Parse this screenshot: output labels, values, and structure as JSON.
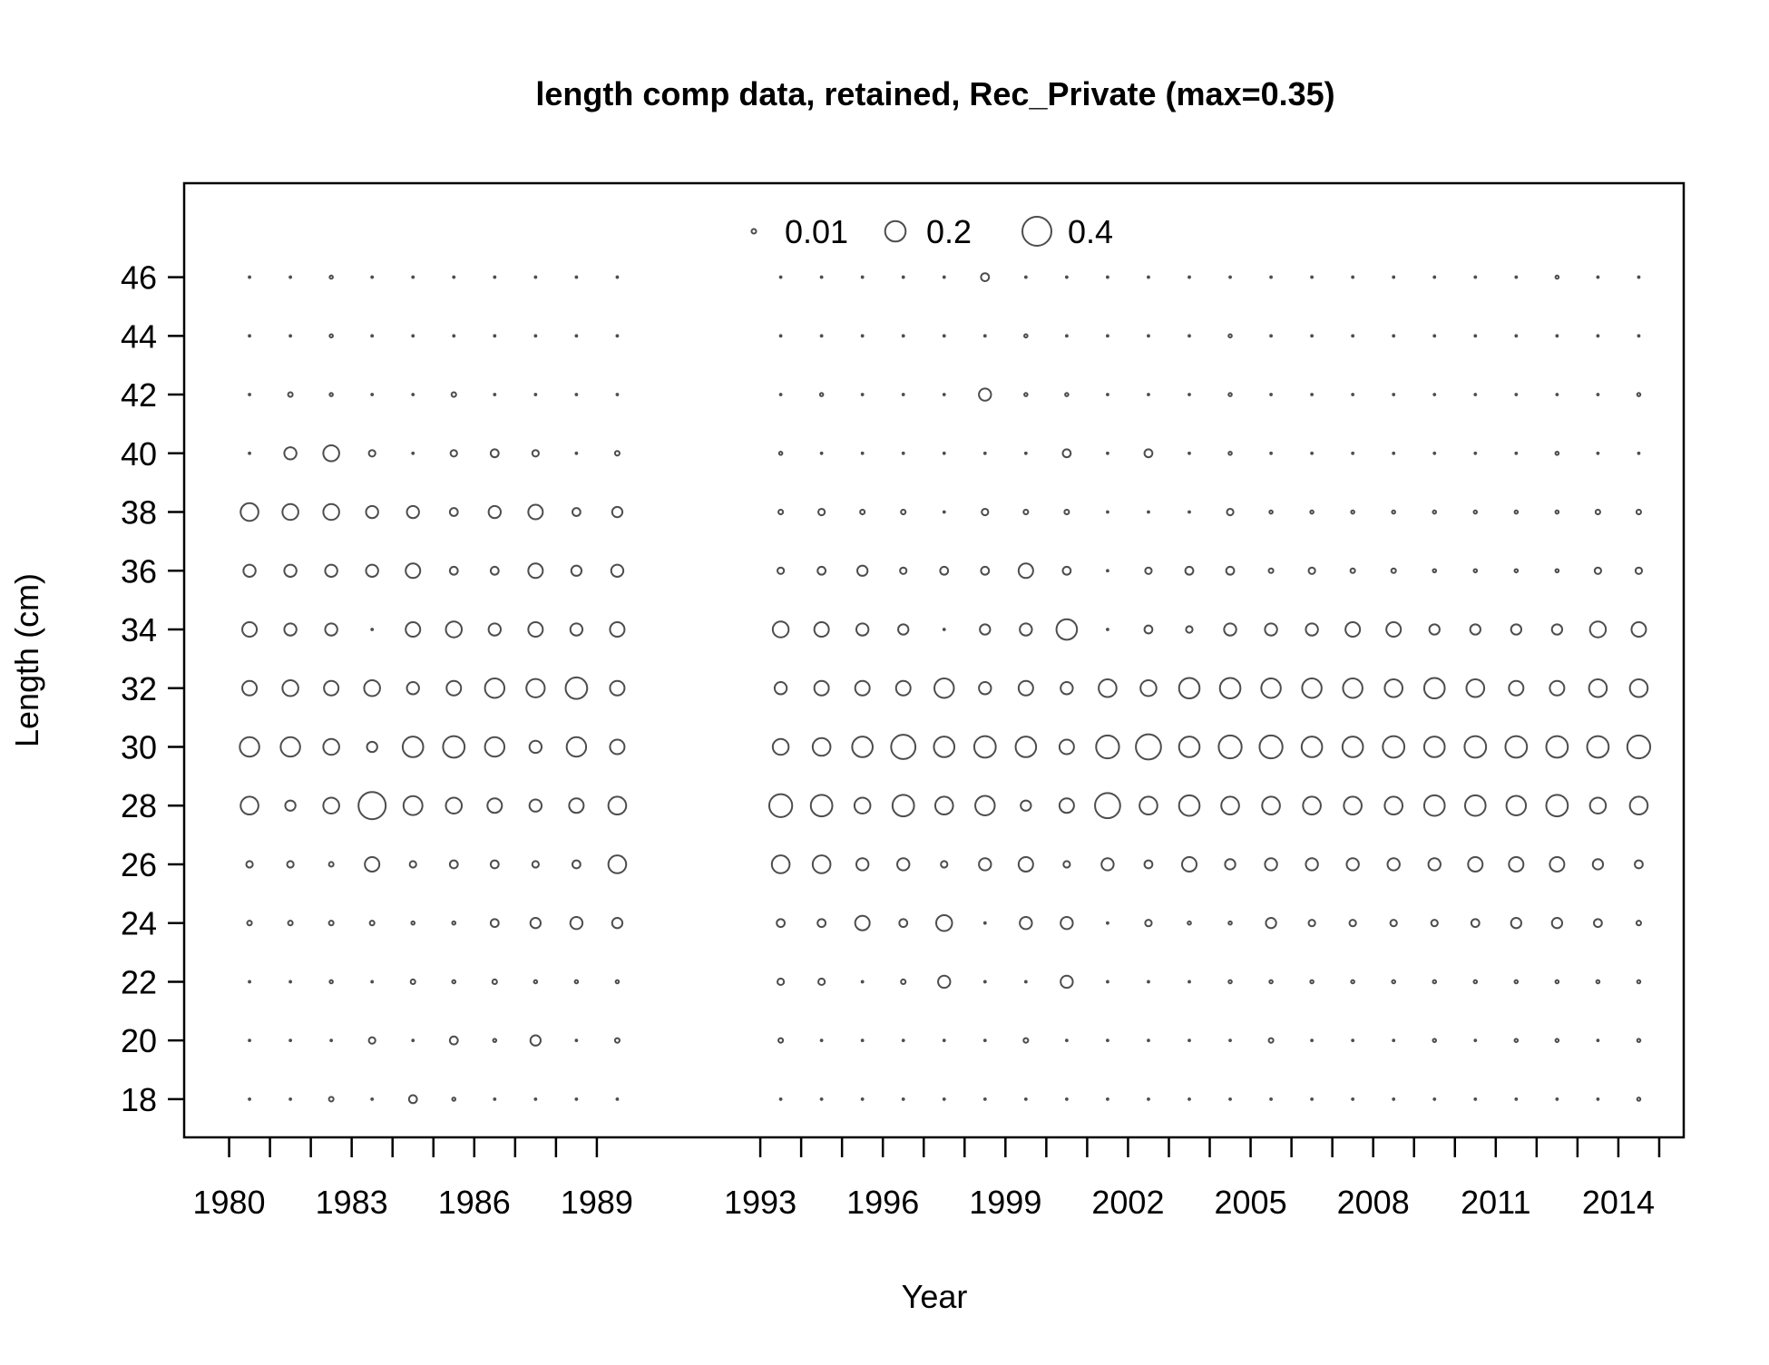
{
  "chart_data": {
    "type": "bubble",
    "title": "length comp data, retained, Rec_Private (max=0.35)",
    "xlabel": "Year",
    "ylabel": "Length (cm)",
    "xlim": [
      1978.9,
      2015.6
    ],
    "ylim": [
      16.7,
      49.2
    ],
    "x_ticks": [
      1980,
      1981,
      1982,
      1983,
      1984,
      1985,
      1986,
      1987,
      1988,
      1989,
      1993,
      1994,
      1995,
      1996,
      1997,
      1998,
      1999,
      2000,
      2001,
      2002,
      2003,
      2004,
      2005,
      2006,
      2007,
      2008,
      2009,
      2010,
      2011,
      2012,
      2013,
      2014,
      2015
    ],
    "x_tick_labels": [
      "1980",
      "1983",
      "1986",
      "1989",
      "1993",
      "1996",
      "1999",
      "2002",
      "2005",
      "2008",
      "2011",
      "2014"
    ],
    "y_ticks": [
      18,
      20,
      22,
      24,
      26,
      28,
      30,
      32,
      34,
      36,
      38,
      40,
      42,
      44,
      46
    ],
    "legend": {
      "values": [
        0.01,
        0.2,
        0.4
      ],
      "labels": [
        "0.01",
        "0.2",
        "0.4"
      ],
      "position": "top"
    },
    "bubble_max_value": 0.4,
    "lengths": [
      18,
      20,
      22,
      24,
      26,
      28,
      30,
      32,
      34,
      36,
      38,
      40,
      42,
      44,
      46
    ],
    "series": [
      {
        "year": 1980.5,
        "values": [
          0.001,
          0.001,
          0.001,
          0.01,
          0.02,
          0.15,
          0.18,
          0.1,
          0.1,
          0.07,
          0.15,
          0.001,
          0.001,
          0.001,
          0.001
        ]
      },
      {
        "year": 1981.5,
        "values": [
          0.001,
          0.001,
          0.001,
          0.01,
          0.02,
          0.05,
          0.18,
          0.12,
          0.07,
          0.07,
          0.12,
          0.07,
          0.01,
          0.001,
          0.001
        ]
      },
      {
        "year": 1982.5,
        "values": [
          0.01,
          0.001,
          0.005,
          0.01,
          0.01,
          0.12,
          0.12,
          0.1,
          0.07,
          0.07,
          0.12,
          0.12,
          0.005,
          0.005,
          0.005
        ]
      },
      {
        "year": 1983.5,
        "values": [
          0.001,
          0.02,
          0.001,
          0.01,
          0.1,
          0.35,
          0.05,
          0.12,
          0.001,
          0.07,
          0.07,
          0.02,
          0.001,
          0.001,
          0.001
        ]
      },
      {
        "year": 1984.5,
        "values": [
          0.03,
          0.001,
          0.01,
          0.005,
          0.02,
          0.17,
          0.2,
          0.07,
          0.1,
          0.1,
          0.07,
          0.001,
          0.001,
          0.001,
          0.001
        ]
      },
      {
        "year": 1985.5,
        "values": [
          0.005,
          0.03,
          0.005,
          0.005,
          0.03,
          0.12,
          0.22,
          0.1,
          0.12,
          0.03,
          0.03,
          0.02,
          0.01,
          0.001,
          0.001
        ]
      },
      {
        "year": 1986.5,
        "values": [
          0.001,
          0.005,
          0.01,
          0.03,
          0.03,
          0.1,
          0.18,
          0.18,
          0.07,
          0.03,
          0.07,
          0.03,
          0.001,
          0.001,
          0.001
        ]
      },
      {
        "year": 1987.5,
        "values": [
          0.001,
          0.05,
          0.005,
          0.05,
          0.02,
          0.07,
          0.07,
          0.16,
          0.1,
          0.1,
          0.1,
          0.02,
          0.001,
          0.001,
          0.001
        ]
      },
      {
        "year": 1988.5,
        "values": [
          0.001,
          0.001,
          0.005,
          0.07,
          0.03,
          0.1,
          0.18,
          0.22,
          0.07,
          0.05,
          0.03,
          0.001,
          0.001,
          0.001,
          0.001
        ]
      },
      {
        "year": 1989.5,
        "values": [
          0.001,
          0.01,
          0.005,
          0.05,
          0.15,
          0.15,
          0.1,
          0.1,
          0.1,
          0.07,
          0.05,
          0.01,
          0.001,
          0.001,
          0.001
        ]
      },
      {
        "year": 1993.5,
        "values": [
          0.001,
          0.01,
          0.02,
          0.03,
          0.15,
          0.25,
          0.12,
          0.07,
          0.12,
          0.02,
          0.01,
          0.005,
          0.001,
          0.001,
          0.001
        ]
      },
      {
        "year": 1994.5,
        "values": [
          0.001,
          0.001,
          0.02,
          0.03,
          0.15,
          0.22,
          0.15,
          0.1,
          0.1,
          0.03,
          0.02,
          0.001,
          0.005,
          0.001,
          0.001
        ]
      },
      {
        "year": 1995.5,
        "values": [
          0.001,
          0.001,
          0.001,
          0.1,
          0.07,
          0.12,
          0.2,
          0.1,
          0.07,
          0.05,
          0.01,
          0.001,
          0.001,
          0.001,
          0.001
        ]
      },
      {
        "year": 1996.5,
        "values": [
          0.001,
          0.001,
          0.01,
          0.03,
          0.07,
          0.22,
          0.28,
          0.1,
          0.05,
          0.02,
          0.01,
          0.001,
          0.001,
          0.001,
          0.001
        ]
      },
      {
        "year": 1997.5,
        "values": [
          0.001,
          0.001,
          0.07,
          0.12,
          0.02,
          0.15,
          0.2,
          0.18,
          0.001,
          0.03,
          0.001,
          0.001,
          0.001,
          0.001,
          0.001
        ]
      },
      {
        "year": 1998.5,
        "values": [
          0.001,
          0.001,
          0.001,
          0.001,
          0.07,
          0.18,
          0.22,
          0.07,
          0.05,
          0.03,
          0.02,
          0.001,
          0.07,
          0.001,
          0.03
        ]
      },
      {
        "year": 1999.5,
        "values": [
          0.001,
          0.01,
          0.001,
          0.07,
          0.1,
          0.05,
          0.2,
          0.1,
          0.07,
          0.1,
          0.01,
          0.001,
          0.005,
          0.005,
          0.001
        ]
      },
      {
        "year": 2000.5,
        "values": [
          0.001,
          0.001,
          0.07,
          0.07,
          0.02,
          0.1,
          0.1,
          0.07,
          0.2,
          0.03,
          0.01,
          0.03,
          0.005,
          0.001,
          0.001
        ]
      },
      {
        "year": 2001.5,
        "values": [
          0.001,
          0.001,
          0.001,
          0.001,
          0.07,
          0.3,
          0.25,
          0.15,
          0.001,
          0.001,
          0.001,
          0.001,
          0.001,
          0.001,
          0.001
        ]
      },
      {
        "year": 2002.5,
        "values": [
          0.001,
          0.001,
          0.001,
          0.02,
          0.03,
          0.15,
          0.3,
          0.12,
          0.03,
          0.02,
          0.001,
          0.03,
          0.001,
          0.001,
          0.001
        ]
      },
      {
        "year": 2003.5,
        "values": [
          0.001,
          0.001,
          0.001,
          0.005,
          0.1,
          0.2,
          0.2,
          0.2,
          0.02,
          0.03,
          0.001,
          0.001,
          0.001,
          0.001,
          0.001
        ]
      },
      {
        "year": 2004.5,
        "values": [
          0.001,
          0.001,
          0.005,
          0.005,
          0.05,
          0.15,
          0.25,
          0.2,
          0.07,
          0.03,
          0.02,
          0.005,
          0.005,
          0.005,
          0.001
        ]
      },
      {
        "year": 2005.5,
        "values": [
          0.001,
          0.01,
          0.005,
          0.05,
          0.07,
          0.15,
          0.25,
          0.18,
          0.07,
          0.01,
          0.005,
          0.001,
          0.001,
          0.001,
          0.001
        ]
      },
      {
        "year": 2006.5,
        "values": [
          0.001,
          0.001,
          0.005,
          0.02,
          0.07,
          0.15,
          0.2,
          0.18,
          0.07,
          0.02,
          0.005,
          0.001,
          0.001,
          0.001,
          0.001
        ]
      },
      {
        "year": 2007.5,
        "values": [
          0.001,
          0.001,
          0.005,
          0.02,
          0.07,
          0.15,
          0.2,
          0.18,
          0.1,
          0.01,
          0.005,
          0.001,
          0.001,
          0.001,
          0.001
        ]
      },
      {
        "year": 2008.5,
        "values": [
          0.001,
          0.001,
          0.005,
          0.02,
          0.07,
          0.15,
          0.22,
          0.15,
          0.1,
          0.01,
          0.005,
          0.001,
          0.001,
          0.001,
          0.001
        ]
      },
      {
        "year": 2009.5,
        "values": [
          0.001,
          0.005,
          0.005,
          0.02,
          0.07,
          0.2,
          0.2,
          0.2,
          0.05,
          0.005,
          0.005,
          0.001,
          0.001,
          0.001,
          0.001
        ]
      },
      {
        "year": 2010.5,
        "values": [
          0.001,
          0.001,
          0.005,
          0.03,
          0.1,
          0.2,
          0.22,
          0.15,
          0.05,
          0.005,
          0.005,
          0.001,
          0.001,
          0.001,
          0.001
        ]
      },
      {
        "year": 2011.5,
        "values": [
          0.001,
          0.005,
          0.005,
          0.05,
          0.1,
          0.18,
          0.22,
          0.1,
          0.05,
          0.005,
          0.005,
          0.001,
          0.001,
          0.001,
          0.001
        ]
      },
      {
        "year": 2012.5,
        "values": [
          0.001,
          0.005,
          0.005,
          0.05,
          0.1,
          0.22,
          0.22,
          0.1,
          0.05,
          0.005,
          0.005,
          0.005,
          0.001,
          0.001,
          0.005
        ]
      },
      {
        "year": 2013.5,
        "values": [
          0.001,
          0.001,
          0.005,
          0.03,
          0.05,
          0.12,
          0.22,
          0.15,
          0.12,
          0.02,
          0.01,
          0.001,
          0.001,
          0.001,
          0.001
        ]
      },
      {
        "year": 2014.5,
        "values": [
          0.005,
          0.005,
          0.005,
          0.01,
          0.03,
          0.15,
          0.25,
          0.15,
          0.1,
          0.02,
          0.01,
          0.001,
          0.005,
          0.001,
          0.001
        ]
      }
    ]
  }
}
